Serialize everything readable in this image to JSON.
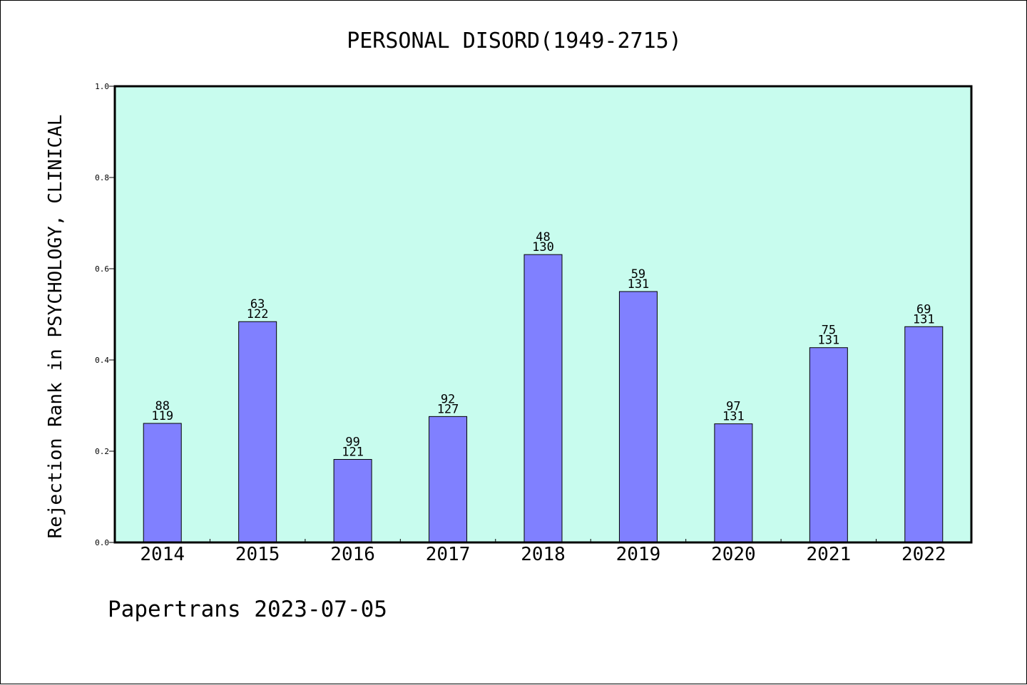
{
  "chart_data": {
    "type": "bar",
    "title": "PERSONAL DISORD(1949-2715)",
    "xlabel": "",
    "ylabel": "Rejection Rank in PSYCHOLOGY, CLINICAL",
    "ylim": [
      0,
      1.0
    ],
    "yticks": [
      "0.0",
      "0.2",
      "0.4",
      "0.6",
      "0.8",
      "1.0"
    ],
    "categories": [
      "2014",
      "2015",
      "2016",
      "2017",
      "2018",
      "2019",
      "2020",
      "2021",
      "2022"
    ],
    "values": [
      0.261,
      0.484,
      0.182,
      0.276,
      0.631,
      0.55,
      0.26,
      0.427,
      0.473
    ],
    "label_top": [
      "88",
      "63",
      "99",
      "92",
      "48",
      "59",
      "97",
      "75",
      "69"
    ],
    "label_bottom": [
      "119",
      "122",
      "121",
      "127",
      "130",
      "131",
      "131",
      "131",
      "131"
    ],
    "grid": false,
    "legend": "none",
    "colors": {
      "plot_background": "#c8fcee",
      "bar_fill": "#8080ff",
      "bar_edge": "#000000"
    }
  },
  "footer": {
    "text": "Papertrans 2023-07-05"
  }
}
